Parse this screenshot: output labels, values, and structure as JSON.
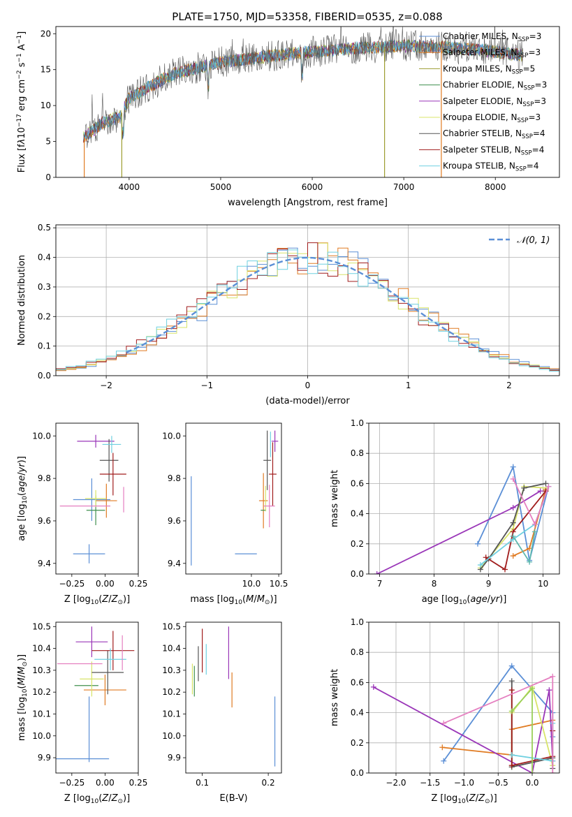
{
  "title": "PLATE=1750, MJD=53358, FIBERID=0535, z=0.088",
  "colors": {
    "Chabrier MILES": "#5b8fd6",
    "Salpeter MILES": "#e07b22",
    "Kroupa MILES": "#9c9c30",
    "Chabrier ELODIE": "#3f8f4e",
    "Salpeter ELODIE": "#9a36b8",
    "Kroupa ELODIE": "#d8e46a",
    "Chabrier STELIB": "#555555",
    "Salpeter STELIB": "#a01c1c",
    "Kroupa STELIB": "#6fd0e0",
    "pink": "#e57fc0",
    "green2": "#9ad05a",
    "teal": "#5fb8b0",
    "grid": "#b0b0b0"
  },
  "chart_data": [
    {
      "id": "spectrum",
      "type": "line",
      "title": "PLATE=1750, MJD=53358, FIBERID=0535, z=0.088",
      "xlabel": "wavelength [Angstrom, rest frame]",
      "ylabel": "Flux [fλ10⁻¹⁷ erg cm⁻² s⁻¹ A⁻¹]",
      "xlim": [
        3200,
        8700
      ],
      "ylim": [
        0,
        21
      ],
      "xticks": [
        4000,
        5000,
        6000,
        7000,
        8000
      ],
      "yticks": [
        0,
        5,
        10,
        15,
        20
      ],
      "legend_position": "upper-right",
      "legend": [
        {
          "base": "Chabrier MILES, N",
          "sub": "SSP",
          "tail": "=3"
        },
        {
          "base": "Salpeter MILES, N",
          "sub": "SSP",
          "tail": "=3"
        },
        {
          "base": "Kroupa MILES, N",
          "sub": "SSP",
          "tail": "=5"
        },
        {
          "base": "Chabrier ELODIE, N",
          "sub": "SSP",
          "tail": "=3"
        },
        {
          "base": "Salpeter ELODIE, N",
          "sub": "SSP",
          "tail": "=3"
        },
        {
          "base": "Kroupa ELODIE, N",
          "sub": "SSP",
          "tail": "=3"
        },
        {
          "base": "Chabrier STELIB, N",
          "sub": "SSP",
          "tail": "=4"
        },
        {
          "base": "Salpeter STELIB, N",
          "sub": "SSP",
          "tail": "=4"
        },
        {
          "base": "Kroupa STELIB, N",
          "sub": "SSP",
          "tail": "=4"
        }
      ],
      "series_keys": [
        "Chabrier MILES",
        "Salpeter MILES",
        "Kroupa MILES",
        "Chabrier ELODIE",
        "Salpeter ELODIE",
        "Kroupa ELODIE",
        "Chabrier STELIB",
        "Salpeter STELIB",
        "Kroupa STELIB"
      ],
      "continuum": {
        "x": [
          3500,
          3700,
          3900,
          4000,
          4200,
          4500,
          5000,
          5500,
          6000,
          6500,
          7000,
          7500,
          8000,
          8300
        ],
        "y": [
          5.5,
          7.5,
          8.5,
          11.0,
          12.5,
          14.5,
          16.0,
          16.8,
          17.5,
          18.0,
          18.3,
          18.1,
          17.5,
          17.0
        ]
      },
      "spikes": [
        {
          "x": 3510,
          "y": 0,
          "series": "Salpeter MILES"
        },
        {
          "x": 3920,
          "y": 0,
          "series": "Kroupa MILES"
        },
        {
          "x": 6790,
          "y": 0,
          "series": "Kroupa MILES"
        },
        {
          "x": 7410,
          "y": 0,
          "series": "Salpeter MILES"
        }
      ]
    },
    {
      "id": "residuals",
      "type": "step",
      "xlabel": "(data-model)/error",
      "ylabel": "Normed distribution",
      "xlim": [
        -2.5,
        2.5
      ],
      "ylim": [
        0,
        0.51
      ],
      "xticks": [
        -2,
        -1,
        0,
        1,
        2
      ],
      "yticks": [
        0.0,
        0.1,
        0.2,
        0.3,
        0.4,
        0.5
      ],
      "legend": "𝒩(0, 1)",
      "legend_position": "upper-right",
      "gaussian": {
        "mean": 0,
        "sigma": 1,
        "x": [
          -1.8,
          1.8
        ]
      },
      "bin_width": 0.1,
      "series_keys": [
        "Chabrier MILES",
        "Salpeter MILES",
        "Kroupa ELODIE",
        "Salpeter STELIB",
        "Kroupa STELIB"
      ]
    },
    {
      "id": "age_vs_Z",
      "type": "errorbar",
      "xlabel": "Z [log₁₀(Z/Z⊙)]",
      "ylabel": "age  [log₁₀(age/yr)]",
      "xlim": [
        -0.37,
        0.25
      ],
      "ylim": [
        9.35,
        10.06
      ],
      "xticks": [
        -0.25,
        0.0,
        0.25
      ],
      "xticklabels": [
        "−0.25",
        "0.00",
        "0.25"
      ],
      "yticks": [
        9.4,
        9.6,
        9.8,
        10.0
      ],
      "points": [
        {
          "x": -0.12,
          "y": 9.445,
          "xe": 0.12,
          "ye": 0.045,
          "c": "Chabrier MILES"
        },
        {
          "x": -0.1,
          "y": 9.7,
          "xe": 0.14,
          "ye": 0.1,
          "c": "Chabrier MILES"
        },
        {
          "x": 0.01,
          "y": 9.695,
          "xe": 0.08,
          "ye": 0.08,
          "c": "Salpeter MILES"
        },
        {
          "x": -0.07,
          "y": 9.65,
          "xe": 0.07,
          "ye": 0.07,
          "c": "Chabrier ELODIE"
        },
        {
          "x": -0.07,
          "y": 9.975,
          "xe": 0.14,
          "ye": 0.03,
          "c": "Salpeter ELODIE"
        },
        {
          "x": -0.07,
          "y": 9.705,
          "xe": 0.08,
          "ye": 0.04,
          "c": "Kroupa ELODIE"
        },
        {
          "x": 0.03,
          "y": 9.885,
          "xe": 0.07,
          "ye": 0.1,
          "c": "Chabrier STELIB"
        },
        {
          "x": 0.06,
          "y": 9.82,
          "xe": 0.1,
          "ye": 0.1,
          "c": "Salpeter STELIB"
        },
        {
          "x": 0.05,
          "y": 9.96,
          "xe": 0.07,
          "ye": 0.04,
          "c": "Kroupa STELIB"
        },
        {
          "x": -0.15,
          "y": 9.67,
          "xe": 0.19,
          "ye": 0.0,
          "c": "pink"
        },
        {
          "x": 0.14,
          "y": 9.7,
          "xe": 0.0,
          "ye": 0.06,
          "c": "pink"
        }
      ]
    },
    {
      "id": "age_vs_mass",
      "type": "errorbar",
      "xlabel": "mass [log₁₀(M/M⊙)]",
      "ylabel": "",
      "xlim": [
        8.8,
        10.55
      ],
      "ylim": [
        9.35,
        10.06
      ],
      "xticks": [
        10.0,
        10.5
      ],
      "xticklabels": [
        "10.0",
        "10.5"
      ],
      "yticks": [
        9.4,
        9.6,
        9.8,
        10.0
      ],
      "points": [
        {
          "x": 9.9,
          "y": 9.445,
          "xe": 0.2,
          "ye": 0.0,
          "c": "Chabrier MILES"
        },
        {
          "x": 8.9,
          "y": 9.6,
          "xe": 0.0,
          "ye": 0.21,
          "c": "Chabrier MILES"
        },
        {
          "x": 10.22,
          "y": 9.695,
          "xe": 0.08,
          "ye": 0.13,
          "c": "Salpeter MILES"
        },
        {
          "x": 10.22,
          "y": 9.65,
          "xe": 0.05,
          "ye": 0.0,
          "c": "Chabrier ELODIE"
        },
        {
          "x": 10.43,
          "y": 9.975,
          "xe": 0.06,
          "ye": 0.05,
          "c": "Salpeter ELODIE"
        },
        {
          "x": 10.26,
          "y": 9.705,
          "xe": 0.0,
          "ye": 0.06,
          "c": "Kroupa ELODIE"
        },
        {
          "x": 10.29,
          "y": 9.885,
          "xe": 0.07,
          "ye": 0.14,
          "c": "Chabrier STELIB"
        },
        {
          "x": 10.39,
          "y": 9.82,
          "xe": 0.07,
          "ye": 0.15,
          "c": "Salpeter STELIB"
        },
        {
          "x": 10.35,
          "y": 9.96,
          "xe": 0.0,
          "ye": 0.06,
          "c": "Kroupa STELIB"
        },
        {
          "x": 10.33,
          "y": 9.67,
          "xe": 0.1,
          "ye": 0.1,
          "c": "pink"
        }
      ]
    },
    {
      "id": "weight_vs_age",
      "type": "line",
      "xlabel": "age  [log₁₀(age/yr)]",
      "ylabel": "mass weight",
      "xlim": [
        6.8,
        10.3
      ],
      "ylim": [
        0,
        1.0
      ],
      "xticks": [
        7,
        8,
        9,
        10
      ],
      "yticks": [
        0.0,
        0.2,
        0.4,
        0.6,
        0.8,
        1.0
      ],
      "series": [
        {
          "c": "Chabrier MILES",
          "x": [
            8.8,
            9.45,
            9.75,
            10.1
          ],
          "y": [
            0.2,
            0.71,
            0.09,
            0.58
          ]
        },
        {
          "c": "Salpeter MILES",
          "x": [
            9.45,
            9.75,
            10.05
          ],
          "y": [
            0.12,
            0.17,
            0.56
          ]
        },
        {
          "c": "Salpeter ELODIE",
          "x": [
            6.95,
            9.45,
            9.95
          ],
          "y": [
            0.0,
            0.44,
            0.55
          ]
        },
        {
          "c": "Kroupa ELODIE",
          "x": [
            8.85,
            9.45,
            9.65,
            10.05
          ],
          "y": [
            0.04,
            0.3,
            0.58,
            0.57
          ]
        },
        {
          "c": "Chabrier STELIB",
          "x": [
            8.85,
            9.0,
            9.45,
            9.65,
            10.05
          ],
          "y": [
            0.03,
            0.1,
            0.34,
            0.57,
            0.6
          ]
        },
        {
          "c": "Salpeter STELIB",
          "x": [
            8.95,
            9.3,
            9.45,
            10.05
          ],
          "y": [
            0.11,
            0.03,
            0.28,
            0.55
          ]
        },
        {
          "c": "Kroupa STELIB",
          "x": [
            8.85,
            9.45,
            9.85,
            10.1
          ],
          "y": [
            0.06,
            0.23,
            0.33,
            0.58
          ]
        },
        {
          "c": "pink",
          "x": [
            9.45,
            9.85,
            10.1
          ],
          "y": [
            0.63,
            0.33,
            0.58
          ]
        },
        {
          "c": "teal",
          "x": [
            9.45,
            9.75,
            9.85
          ],
          "y": [
            0.25,
            0.08,
            0.28
          ]
        }
      ]
    },
    {
      "id": "mass_vs_Z",
      "type": "errorbar",
      "xlabel": "Z [log₁₀(Z/Z⊙)]",
      "ylabel": "mass [log₁₀(M/M⊙)]",
      "xlim": [
        -0.37,
        0.25
      ],
      "ylim": [
        9.83,
        10.52
      ],
      "xticks": [
        -0.25,
        0.0,
        0.25
      ],
      "xticklabels": [
        "−0.25",
        "0.00",
        "0.25"
      ],
      "yticks": [
        9.9,
        10.0,
        10.1,
        10.2,
        10.3,
        10.4,
        10.5
      ],
      "points": [
        {
          "x": -0.17,
          "y": 9.895,
          "xe": 0.2,
          "ye": 0.0,
          "c": "Chabrier MILES"
        },
        {
          "x": -0.12,
          "y": 10.03,
          "xe": 0.0,
          "ye": 0.15,
          "c": "Chabrier MILES"
        },
        {
          "x": 0.0,
          "y": 10.21,
          "xe": 0.16,
          "ye": 0.07,
          "c": "Salpeter MILES"
        },
        {
          "x": -0.14,
          "y": 10.23,
          "xe": 0.09,
          "ye": 0.0,
          "c": "Chabrier ELODIE"
        },
        {
          "x": -0.1,
          "y": 10.43,
          "xe": 0.12,
          "ye": 0.07,
          "c": "Salpeter ELODIE"
        },
        {
          "x": -0.1,
          "y": 10.26,
          "xe": 0.09,
          "ye": 0.08,
          "c": "Kroupa ELODIE"
        },
        {
          "x": 0.02,
          "y": 10.29,
          "xe": 0.12,
          "ye": 0.1,
          "c": "Chabrier STELIB"
        },
        {
          "x": 0.06,
          "y": 10.39,
          "xe": 0.16,
          "ye": 0.09,
          "c": "Salpeter STELIB"
        },
        {
          "x": 0.04,
          "y": 10.35,
          "xe": 0.12,
          "ye": 0.05,
          "c": "Kroupa STELIB"
        },
        {
          "x": -0.19,
          "y": 10.33,
          "xe": 0.17,
          "ye": 0.0,
          "c": "pink"
        },
        {
          "x": 0.13,
          "y": 10.38,
          "xe": 0.0,
          "ye": 0.08,
          "c": "pink"
        }
      ]
    },
    {
      "id": "mass_vs_ebv",
      "type": "errorbar",
      "xlabel": "E(B-V)",
      "ylabel": "",
      "xlim": [
        0.075,
        0.22
      ],
      "ylim": [
        9.83,
        10.52
      ],
      "xticks": [
        0.1,
        0.2
      ],
      "xticklabels": [
        "0.1",
        "0.2"
      ],
      "yticks": [
        9.9,
        10.0,
        10.1,
        10.2,
        10.3,
        10.4,
        10.5
      ],
      "points": [
        {
          "x": 0.21,
          "y": 10.02,
          "xe": 0.0,
          "ye": 0.16,
          "c": "Chabrier MILES"
        },
        {
          "x": 0.145,
          "y": 10.21,
          "xe": 0.0,
          "ye": 0.08,
          "c": "Salpeter MILES"
        },
        {
          "x": 0.088,
          "y": 10.25,
          "xe": 0.0,
          "ye": 0.07,
          "c": "Chabrier ELODIE"
        },
        {
          "x": 0.14,
          "y": 10.38,
          "xe": 0.0,
          "ye": 0.12,
          "c": "Salpeter ELODIE"
        },
        {
          "x": 0.085,
          "y": 10.26,
          "xe": 0.0,
          "ye": 0.07,
          "c": "Kroupa ELODIE"
        },
        {
          "x": 0.094,
          "y": 10.33,
          "xe": 0.0,
          "ye": 0.08,
          "c": "Chabrier STELIB"
        },
        {
          "x": 0.1,
          "y": 10.39,
          "xe": 0.0,
          "ye": 0.1,
          "c": "Salpeter STELIB"
        },
        {
          "x": 0.106,
          "y": 10.35,
          "xe": 0.0,
          "ye": 0.07,
          "c": "Kroupa STELIB"
        }
      ]
    },
    {
      "id": "weight_vs_Z",
      "type": "line",
      "xlabel": "Z [log₁₀(Z/Z⊙)]",
      "ylabel": "mass weight",
      "xlim": [
        -2.4,
        0.4
      ],
      "ylim": [
        0,
        1.0
      ],
      "xticks": [
        -2.0,
        -1.5,
        -1.0,
        -0.5,
        0.0
      ],
      "xticklabels": [
        "−2.0",
        "−1.5",
        "−1.0",
        "−0.5",
        "0.0"
      ],
      "yticks": [
        0.0,
        0.2,
        0.4,
        0.6,
        0.8,
        1.0
      ],
      "series": [
        {
          "c": "Chabrier MILES",
          "x": [
            -1.3,
            -0.3,
            0.3,
            0.3
          ],
          "y": [
            0.08,
            0.71,
            0.4,
            0.24
          ]
        },
        {
          "c": "Salpeter MILES",
          "x": [
            -1.32,
            -0.3,
            -0.3,
            0.3
          ],
          "y": [
            0.17,
            0.12,
            0.29,
            0.35
          ]
        },
        {
          "c": "Salpeter ELODIE",
          "x": [
            -2.33,
            0.0,
            0.25,
            0.3
          ],
          "y": [
            0.57,
            0.0,
            0.55,
            0.08
          ]
        },
        {
          "c": "Kroupa ELODIE",
          "x": [
            -0.3,
            -0.3,
            0.0,
            0.3
          ],
          "y": [
            0.04,
            0.4,
            0.57,
            0.05
          ]
        },
        {
          "c": "Chabrier STELIB",
          "x": [
            -0.3,
            -0.3,
            0.3,
            0.3
          ],
          "y": [
            0.61,
            0.04,
            0.1,
            0.03
          ]
        },
        {
          "c": "Salpeter STELIB",
          "x": [
            -0.3,
            -0.3,
            0.3,
            0.3
          ],
          "y": [
            0.55,
            0.05,
            0.11,
            0.28
          ]
        },
        {
          "c": "Kroupa STELIB",
          "x": [
            -0.3,
            0.3,
            0.3
          ],
          "y": [
            0.12,
            0.08,
            0.33
          ]
        },
        {
          "c": "pink",
          "x": [
            -1.3,
            0.3,
            0.3
          ],
          "y": [
            0.33,
            0.64,
            0.0
          ]
        },
        {
          "c": "green2",
          "x": [
            -0.3,
            0.0,
            0.0
          ],
          "y": [
            0.41,
            0.56,
            0.0
          ]
        }
      ]
    }
  ]
}
